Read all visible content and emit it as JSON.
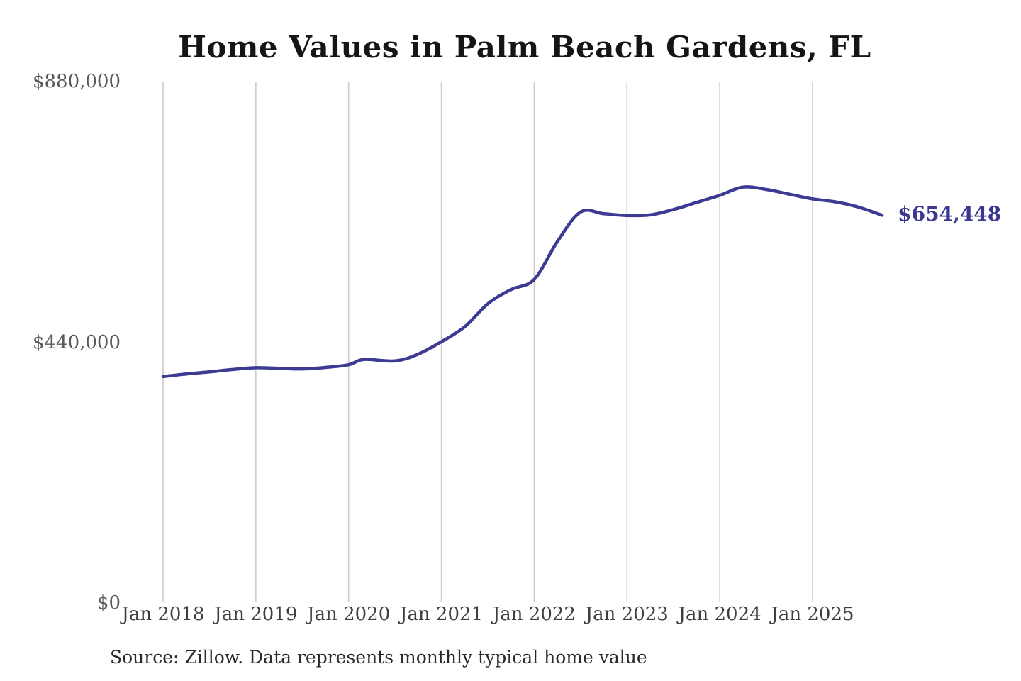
{
  "chart_data": {
    "type": "line",
    "title": "Home Values in Palm Beach Gardens, FL",
    "source_note": "Source: Zillow. Data represents monthly typical home value",
    "latest_value": 654448,
    "latest_value_label": "$654,448",
    "ylim": [
      0,
      880000
    ],
    "grid": "vertical-only",
    "colors": {
      "line": "#3d3a94",
      "end_label": "#3b3690",
      "gridline": "#cccccc",
      "title": "#151515",
      "axis_text": "#4a4a4a"
    },
    "y_ticks": [
      {
        "value": 0,
        "label": "$0"
      },
      {
        "value": 440000,
        "label": "$440,000"
      },
      {
        "value": 880000,
        "label": "$880,000"
      }
    ],
    "x_ticks": [
      {
        "month": "2018-01",
        "label": "Jan 2018"
      },
      {
        "month": "2019-01",
        "label": "Jan 2019"
      },
      {
        "month": "2020-01",
        "label": "Jan 2020"
      },
      {
        "month": "2021-01",
        "label": "Jan 2021"
      },
      {
        "month": "2022-01",
        "label": "Jan 2022"
      },
      {
        "month": "2023-01",
        "label": "Jan 2023"
      },
      {
        "month": "2024-01",
        "label": "Jan 2024"
      },
      {
        "month": "2025-01",
        "label": "Jan 2025"
      }
    ],
    "series": [
      {
        "name": "Typical home value",
        "points": [
          [
            "2018-01",
            382000
          ],
          [
            "2018-04",
            386500
          ],
          [
            "2018-07",
            390000
          ],
          [
            "2018-10",
            394000
          ],
          [
            "2019-01",
            397000
          ],
          [
            "2019-04",
            396000
          ],
          [
            "2019-07",
            395000
          ],
          [
            "2019-10",
            397500
          ],
          [
            "2020-01",
            402000
          ],
          [
            "2020-03",
            411000
          ],
          [
            "2020-07",
            408500
          ],
          [
            "2020-10",
            420000
          ],
          [
            "2021-01",
            441000
          ],
          [
            "2021-04",
            466000
          ],
          [
            "2021-07",
            505000
          ],
          [
            "2021-10",
            529000
          ],
          [
            "2022-01",
            546000
          ],
          [
            "2022-04",
            610000
          ],
          [
            "2022-07",
            660000
          ],
          [
            "2022-10",
            657000
          ],
          [
            "2023-01",
            654000
          ],
          [
            "2023-04",
            655000
          ],
          [
            "2023-07",
            664000
          ],
          [
            "2023-10",
            676000
          ],
          [
            "2024-01",
            688000
          ],
          [
            "2024-04",
            702000
          ],
          [
            "2024-07",
            698000
          ],
          [
            "2024-10",
            690000
          ],
          [
            "2025-01",
            682000
          ],
          [
            "2025-04",
            677000
          ],
          [
            "2025-07",
            668000
          ],
          [
            "2025-10",
            654448
          ]
        ]
      }
    ]
  }
}
